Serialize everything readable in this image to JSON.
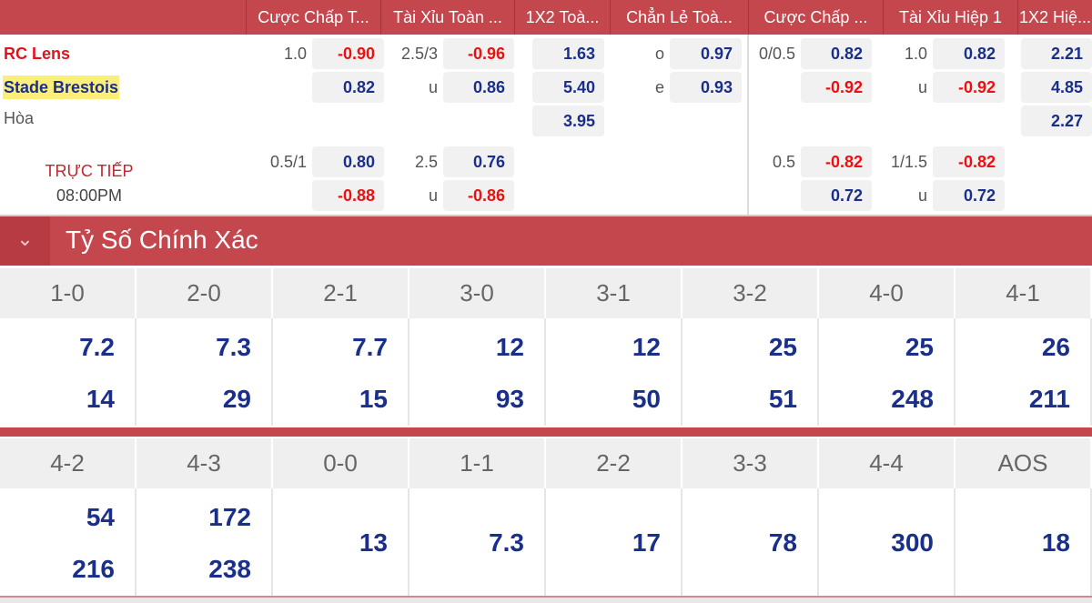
{
  "header": {
    "columns": [
      "Cược Chấp T...",
      "Tài Xỉu Toàn ...",
      "1X2 Toà...",
      "Chẳn Lẻ Toà...",
      "Cược Chấp ...",
      "Tài Xỉu Hiệp 1",
      "1X2 Hiệ..."
    ]
  },
  "match": {
    "home": "RC Lens",
    "away": "Stade Brestois",
    "draw": "Hòa",
    "status": "TRỰC TIẾP",
    "time": "08:00PM"
  },
  "odds": [
    {
      "l": "1.0",
      "v": "-0.90",
      "c": "red",
      "col": 0,
      "row": 0
    },
    {
      "v": "0.82",
      "c": "blue",
      "col": 0,
      "row": 1
    },
    {
      "l": "0.5/1",
      "v": "0.80",
      "c": "blue",
      "col": 0,
      "row": 3
    },
    {
      "v": "-0.88",
      "c": "red",
      "col": 0,
      "row": 4
    },
    {
      "l": "2.5/3",
      "v": "-0.96",
      "c": "red",
      "col": 1,
      "row": 0
    },
    {
      "l": "u",
      "v": "0.86",
      "c": "blue",
      "col": 1,
      "row": 1
    },
    {
      "l": "2.5",
      "v": "0.76",
      "c": "blue",
      "col": 1,
      "row": 3
    },
    {
      "l": "u",
      "v": "-0.86",
      "c": "red",
      "col": 1,
      "row": 4
    },
    {
      "v": "1.63",
      "c": "blue",
      "col": 2,
      "row": 0
    },
    {
      "v": "5.40",
      "c": "blue",
      "col": 2,
      "row": 1
    },
    {
      "v": "3.95",
      "c": "blue",
      "col": 2,
      "row": 2
    },
    {
      "l": "o",
      "v": "0.97",
      "c": "blue",
      "col": 3,
      "row": 0
    },
    {
      "l": "e",
      "v": "0.93",
      "c": "blue",
      "col": 3,
      "row": 1
    },
    {
      "l": "0/0.5",
      "v": "0.82",
      "c": "blue",
      "col": 4,
      "row": 0
    },
    {
      "v": "-0.92",
      "c": "red",
      "col": 4,
      "row": 1
    },
    {
      "l": "0.5",
      "v": "-0.82",
      "c": "red",
      "col": 4,
      "row": 3
    },
    {
      "v": "0.72",
      "c": "blue",
      "col": 4,
      "row": 4
    },
    {
      "l": "1.0",
      "v": "0.82",
      "c": "blue",
      "col": 5,
      "row": 0
    },
    {
      "l": "u",
      "v": "-0.92",
      "c": "red",
      "col": 5,
      "row": 1
    },
    {
      "l": "1/1.5",
      "v": "-0.82",
      "c": "red",
      "col": 5,
      "row": 3
    },
    {
      "l": "u",
      "v": "0.72",
      "c": "blue",
      "col": 5,
      "row": 4
    },
    {
      "v": "2.21",
      "c": "blue",
      "col": 6,
      "row": 0
    },
    {
      "v": "4.85",
      "c": "blue",
      "col": 6,
      "row": 1
    },
    {
      "v": "2.27",
      "c": "blue",
      "col": 6,
      "row": 2
    }
  ],
  "section": {
    "title": "Tỷ Số Chính Xác",
    "icon": "chevron-down-icon"
  },
  "scores1": [
    {
      "s": "1-0",
      "a": "7.2",
      "b": "14"
    },
    {
      "s": "2-0",
      "a": "7.3",
      "b": "29"
    },
    {
      "s": "2-1",
      "a": "7.7",
      "b": "15"
    },
    {
      "s": "3-0",
      "a": "12",
      "b": "93"
    },
    {
      "s": "3-1",
      "a": "12",
      "b": "50"
    },
    {
      "s": "3-2",
      "a": "25",
      "b": "51"
    },
    {
      "s": "4-0",
      "a": "25",
      "b": "248"
    },
    {
      "s": "4-1",
      "a": "26",
      "b": "211"
    }
  ],
  "scores2": [
    {
      "s": "4-2",
      "a": "54",
      "b": "216"
    },
    {
      "s": "4-3",
      "a": "172",
      "b": "238"
    },
    {
      "s": "0-0",
      "m": "13"
    },
    {
      "s": "1-1",
      "m": "7.3"
    },
    {
      "s": "2-2",
      "m": "17"
    },
    {
      "s": "3-3",
      "m": "78"
    },
    {
      "s": "4-4",
      "m": "300"
    },
    {
      "s": "AOS",
      "m": "18"
    }
  ],
  "colors": {
    "header": "#c4474e",
    "positive": "#1a2f8a",
    "negative": "#ee1010"
  }
}
